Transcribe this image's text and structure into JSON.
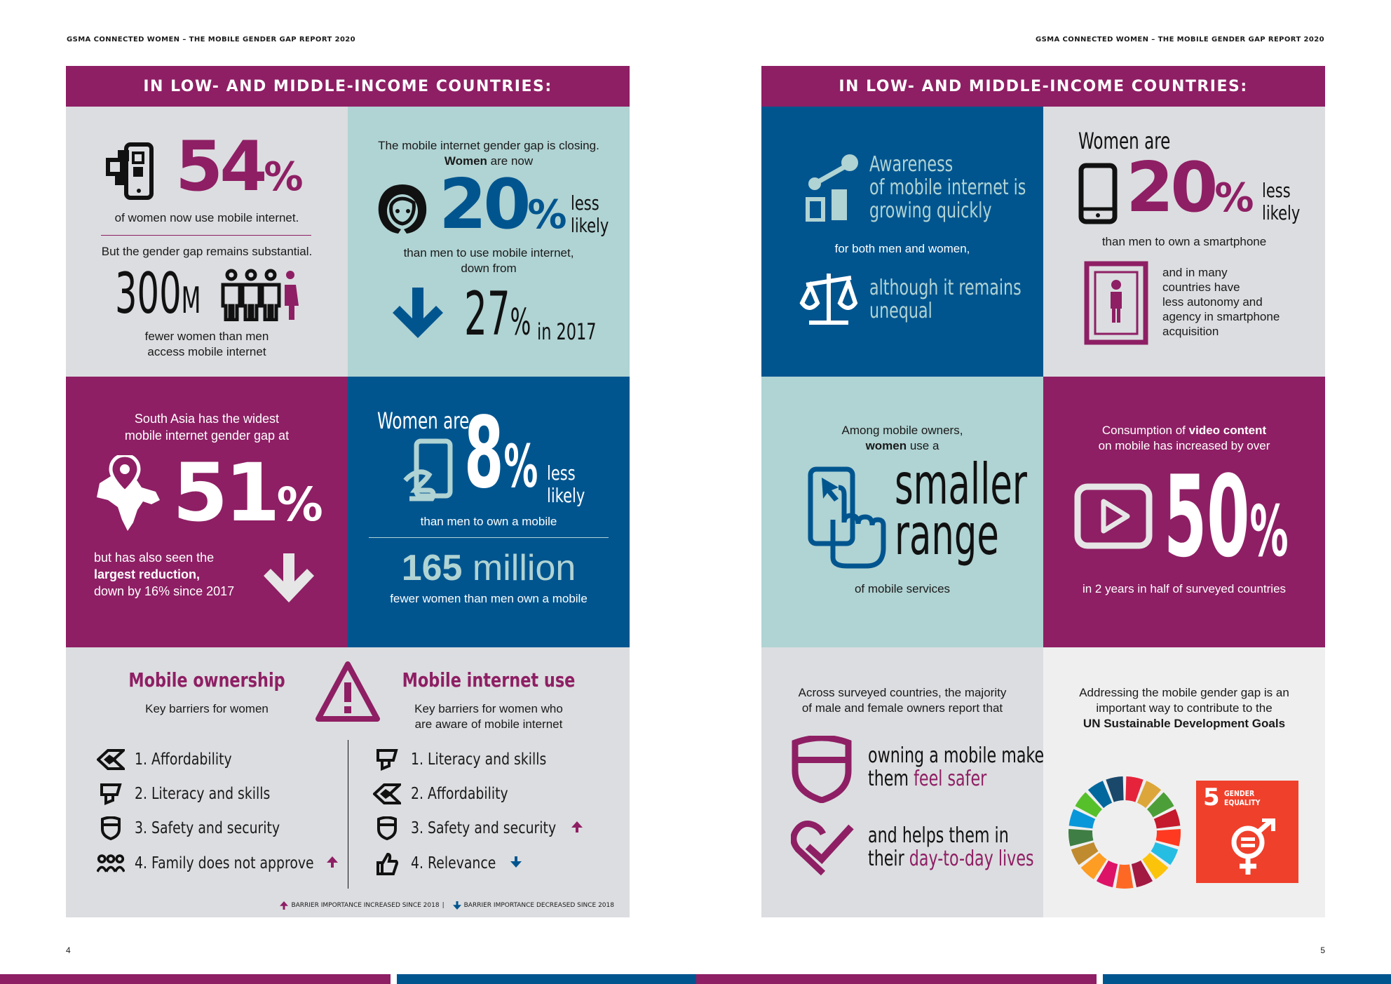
{
  "header": {
    "left": "GSMA CONNECTED WOMEN – THE MOBILE GENDER GAP REPORT 2020",
    "right": "GSMA CONNECTED WOMEN – THE MOBILE GENDER GAP REPORT 2020"
  },
  "page_numbers": {
    "left": "4",
    "right": "5"
  },
  "left_page": {
    "banner": "IN LOW- AND MIDDLE-INCOME COUNTRIES:",
    "internet_use": {
      "value": "54",
      "pct": "%",
      "caption": "of women now use mobile internet.",
      "gap_text": "But the gender gap remains substantial.",
      "fewer_value": "300",
      "fewer_unit": "M",
      "fewer_caption_1": "fewer women than men",
      "fewer_caption_2": "access mobile internet"
    },
    "gap_closing": {
      "line1": "The mobile internet gender gap is closing.",
      "line2_bold": "Women",
      "line2_rest": " are now",
      "value": "20",
      "pct": "%",
      "less": "less",
      "likely": "likely",
      "caption_1": "than men to use mobile internet,",
      "caption_2": "down from",
      "prev_value": "27",
      "prev_pct": "%",
      "prev_year": "in 2017"
    },
    "south_asia": {
      "line1": "South Asia has the widest",
      "line2": "mobile internet gender gap at",
      "value": "51",
      "pct": "%",
      "b1": "but has also seen the",
      "b2_bold": "largest reduction,",
      "b3": "down by 16% since 2017"
    },
    "ownership": {
      "women_are": "Women are",
      "value": "8",
      "pct": "%",
      "less": "less",
      "likely": "likely",
      "caption": "than men to own a mobile",
      "million_value": "165",
      "million_unit": " million",
      "million_caption": "fewer women than men own a mobile"
    },
    "barriers": {
      "ownership_title": "Mobile ownership",
      "ownership_sub": "Key barriers for women",
      "internet_title": "Mobile internet use",
      "internet_sub_1": "Key barriers for women who",
      "internet_sub_2": "are aware of mobile internet",
      "ownership_items": [
        {
          "num": "1.",
          "label": "Affordability",
          "trend": ""
        },
        {
          "num": "2.",
          "label": "Literacy and skills",
          "trend": ""
        },
        {
          "num": "3.",
          "label": "Safety and security",
          "trend": ""
        },
        {
          "num": "4.",
          "label": "Family does not approve",
          "trend": "up"
        }
      ],
      "internet_items": [
        {
          "num": "1.",
          "label": "Literacy and skills",
          "trend": ""
        },
        {
          "num": "2.",
          "label": "Affordability",
          "trend": ""
        },
        {
          "num": "3.",
          "label": "Safety and security",
          "trend": "up"
        },
        {
          "num": "4.",
          "label": "Relevance",
          "trend": "down"
        }
      ],
      "legend_up": "BARRIER IMPORTANCE INCREASED SINCE 2018",
      "legend_sep": "|",
      "legend_down": "BARRIER IMPORTANCE DECREASED SINCE 2018"
    }
  },
  "right_page": {
    "banner": "IN LOW- AND MIDDLE-INCOME COUNTRIES:",
    "awareness": {
      "l1": "Awareness",
      "l2": "of mobile internet is",
      "l3": "growing quickly",
      "caption": "for both men and women,",
      "u1": "although it remains",
      "u2": "unequal"
    },
    "smartphone": {
      "women_are": "Women are",
      "value": "20",
      "pct": "%",
      "less": "less",
      "likely": "likely",
      "caption": "than men to own a smartphone",
      "autonomy_1": "and in many",
      "autonomy_2": "countries have",
      "autonomy_3": "less autonomy and",
      "autonomy_4": "agency in smartphone",
      "autonomy_5": "acquisition"
    },
    "range": {
      "l1": "Among mobile owners,",
      "l2_bold": "women",
      "l2_rest": " use a",
      "big1": "smaller",
      "big2": "range",
      "caption": "of mobile services"
    },
    "video": {
      "l1_pre": "Consumption of ",
      "l1_bold": "video content",
      "l2": "on mobile has increased by over",
      "value": "50",
      "pct": "%",
      "caption": "in 2 years in half of surveyed countries"
    },
    "safety": {
      "l1": "Across surveyed countries, the majority",
      "l2": "of male and female owners report that",
      "s1": "owning a mobile makes",
      "s2_pre": "them ",
      "s2_hl": "feel safer",
      "d1": "and helps them in",
      "d2_pre": "their ",
      "d2_hl": "day-to-day lives"
    },
    "sdg": {
      "l1": "Addressing the mobile gender gap is an",
      "l2": "important way to contribute to the",
      "l3_bold": "UN Sustainable Development Goals",
      "goal_num": "5",
      "goal_title_1": "GENDER",
      "goal_title_2": "EQUALITY",
      "goal_color": "#ef402b"
    }
  },
  "colors": {
    "purple": "#8e1f64",
    "blue": "#00558f",
    "teal": "#b0d3d3",
    "grey": "#dcdde0"
  }
}
